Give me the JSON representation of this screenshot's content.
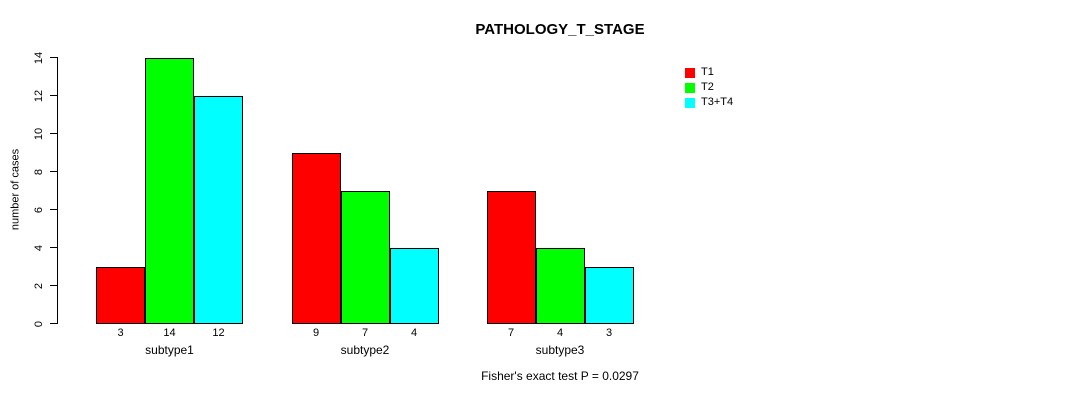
{
  "chart_data": {
    "type": "bar",
    "title": "PATHOLOGY_T_STAGE",
    "ylabel": "number of cases",
    "xlabel": "",
    "categories": [
      "subtype1",
      "subtype2",
      "subtype3"
    ],
    "series": [
      {
        "name": "T1",
        "color": "#ff0000",
        "values": [
          3,
          9,
          7
        ]
      },
      {
        "name": "T2",
        "color": "#00ff00",
        "values": [
          14,
          7,
          4
        ]
      },
      {
        "name": "T3+T4",
        "color": "#00ffff",
        "values": [
          12,
          4,
          3
        ]
      }
    ],
    "bar_value_labels": [
      [
        3,
        14,
        12
      ],
      [
        9,
        7,
        4
      ],
      [
        7,
        4,
        3
      ]
    ],
    "yticks": [
      0,
      2,
      4,
      6,
      8,
      10,
      12,
      14
    ],
    "ylim": [
      0,
      14
    ],
    "grid": false,
    "legend_position": "top-right",
    "footnote": "Fisher's exact test P = 0.0297"
  }
}
